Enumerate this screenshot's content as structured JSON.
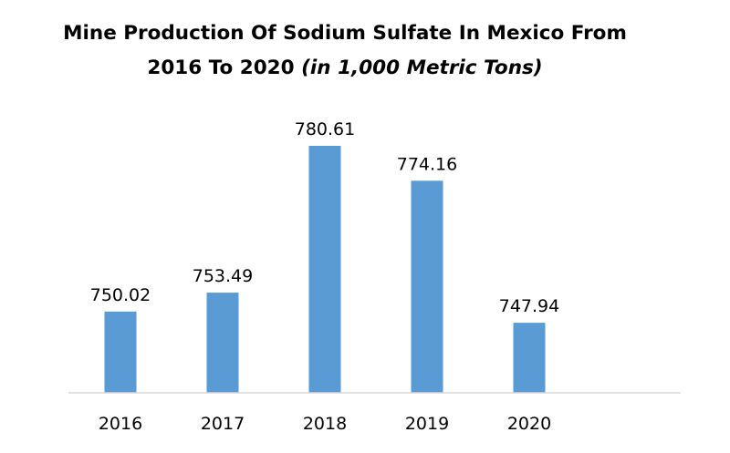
{
  "chart_data": {
    "type": "bar",
    "title_line1": "Mine Production Of Sodium Sulfate In Mexico From",
    "title_line2": "2016 To 2020",
    "title_unit": "(in 1,000 Metric Tons)",
    "categories": [
      "2016",
      "2017",
      "2018",
      "2019",
      "2020"
    ],
    "values": [
      750.02,
      753.49,
      780.61,
      774.16,
      747.94
    ],
    "data_labels": [
      "750.02",
      "753.49",
      "780.61",
      "774.16",
      "747.94"
    ],
    "bar_color": "#5b9bd5",
    "axis_color": "#d9d9d9",
    "ylim": [
      735,
      785
    ],
    "grid": false,
    "legend": "none"
  }
}
